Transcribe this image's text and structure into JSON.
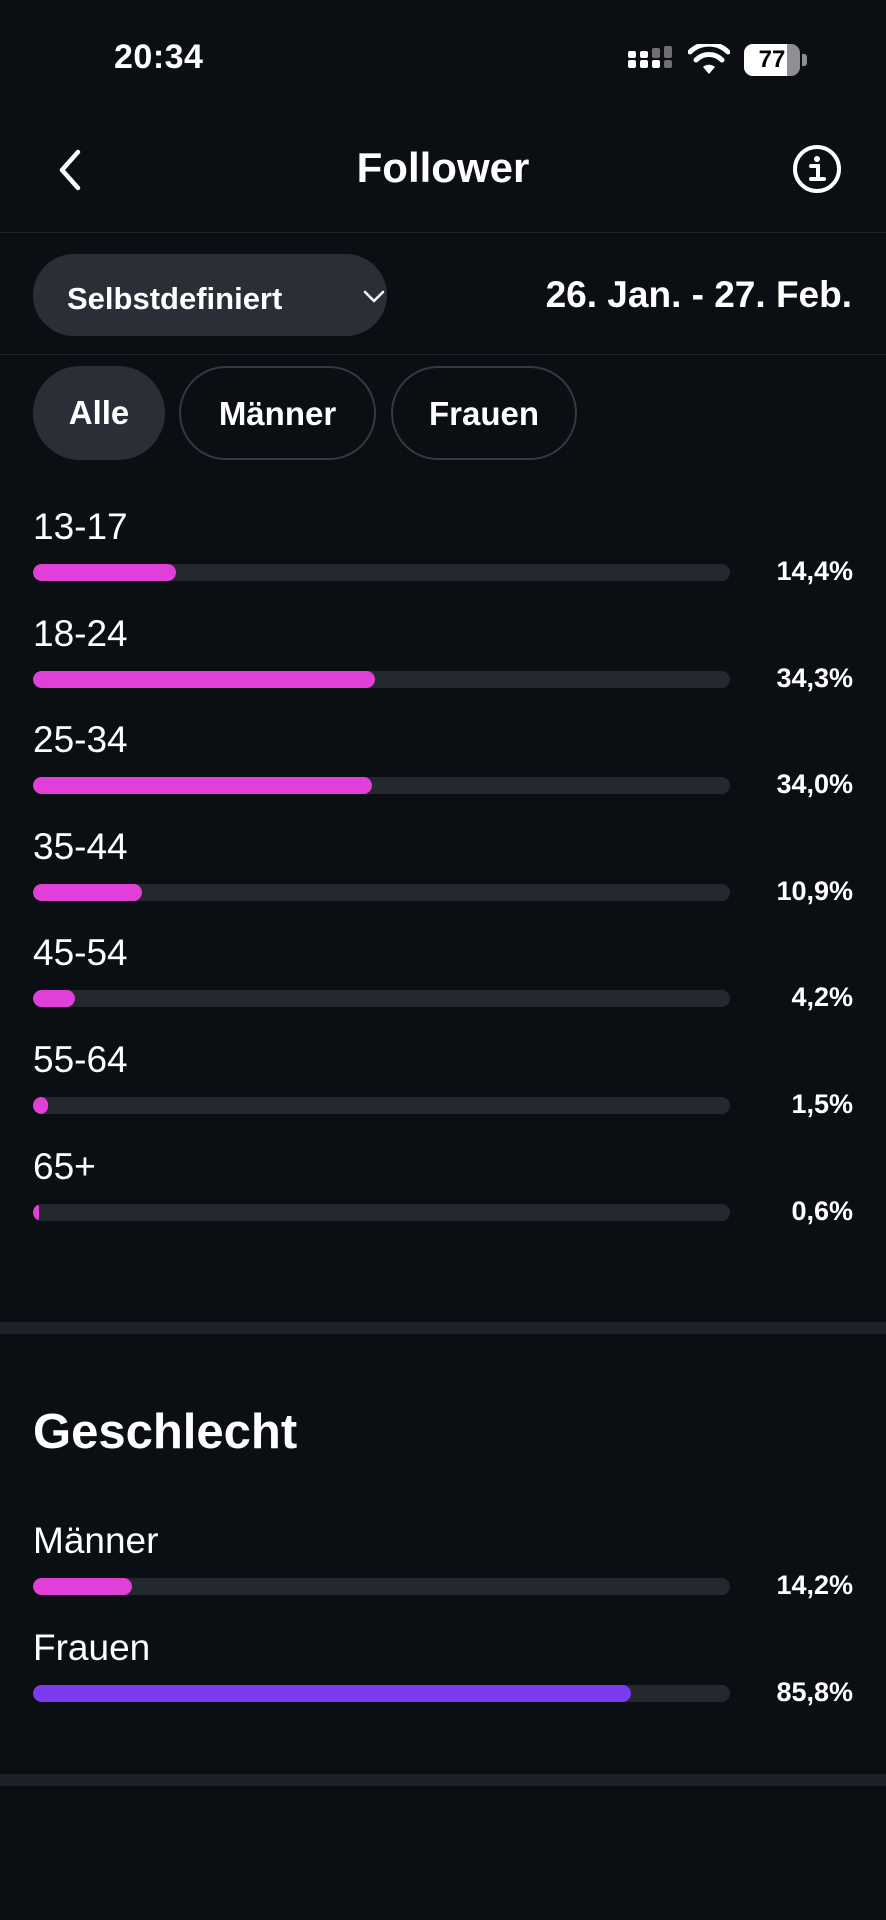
{
  "status_bar": {
    "time": "20:34",
    "battery": "77",
    "battery_level": 0.77
  },
  "header": {
    "title": "Follower"
  },
  "filters": {
    "range_label": "Selbstdefiniert",
    "date_range": "26. Jan. - 27. Feb."
  },
  "tabs": [
    {
      "label": "Alle",
      "active": true
    },
    {
      "label": "Männer",
      "active": false
    },
    {
      "label": "Frauen",
      "active": false
    }
  ],
  "age_groups": [
    {
      "label": "13-17",
      "value": "14,4%",
      "fraction": 0.144
    },
    {
      "label": "18-24",
      "value": "34,3%",
      "fraction": 0.343
    },
    {
      "label": "25-34",
      "value": "34,0%",
      "fraction": 0.34
    },
    {
      "label": "35-44",
      "value": "10,9%",
      "fraction": 0.109
    },
    {
      "label": "45-54",
      "value": "4,2%",
      "fraction": 0.042
    },
    {
      "label": "55-64",
      "value": "1,5%",
      "fraction": 0.015
    },
    {
      "label": "65+",
      "value": "0,6%",
      "fraction": 0.006
    }
  ],
  "gender": {
    "title": "Geschlecht",
    "items": [
      {
        "label": "Männer",
        "value": "14,2%",
        "fraction": 0.142
      },
      {
        "label": "Frauen",
        "value": "85,8%",
        "fraction": 0.858
      }
    ]
  },
  "colors": {
    "age_bar": "#e040d8",
    "men_bar": "#e040d8",
    "women_bar": "#7b3cf0",
    "track": "#24282f"
  }
}
